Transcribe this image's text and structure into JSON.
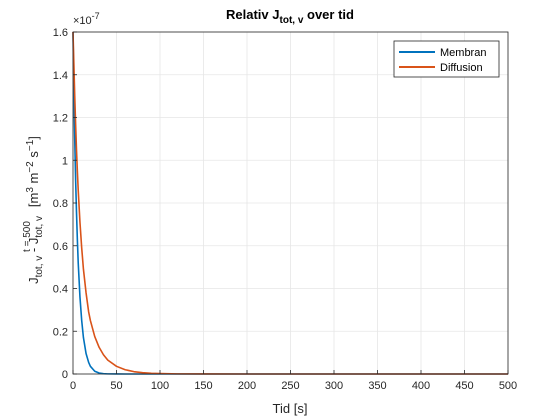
{
  "chart_data": {
    "type": "line",
    "title": {
      "main": "Relativ J",
      "sub": "tot, v",
      "suffix": " over tid"
    },
    "xlabel": "Tid [s]",
    "ylabel": {
      "j": "J",
      "j_sub": "tot, v",
      "minus": " - J",
      "ref_sub": "tot, v",
      "ref_sup": "t = 500",
      "unit_open": "[m",
      "unit_m3": "3",
      "unit_m": " m",
      "unit_m2": "−2",
      "unit_s": " s",
      "unit_s1": "−1",
      "unit_close": "]"
    },
    "y_exponent": {
      "base": "×10",
      "power": "-7"
    },
    "xlim": [
      0,
      500
    ],
    "ylim": [
      0,
      1.6e-07
    ],
    "xticks": [
      0,
      50,
      100,
      150,
      200,
      250,
      300,
      350,
      400,
      450,
      500
    ],
    "yticks": [
      0,
      0.2,
      0.4,
      0.6,
      0.8,
      1,
      1.2,
      1.4,
      1.6
    ],
    "ytick_labels": [
      "0",
      "0.2",
      "0.4",
      "0.6",
      "0.8",
      "1",
      "1.2",
      "1.4",
      "1.6"
    ],
    "grid": true,
    "legend_position": "top-right",
    "series": [
      {
        "name": "Membran",
        "color": "#0072BD",
        "x": [
          0,
          1,
          2,
          3,
          4,
          5,
          6,
          8,
          10,
          12,
          15,
          18,
          20,
          25,
          30,
          35,
          40,
          50,
          60,
          80,
          100,
          150,
          200,
          300,
          400,
          500
        ],
        "y": [
          1.6e-07,
          1.32e-07,
          1.1e-07,
          9.1e-08,
          7.6e-08,
          6.3e-08,
          5.2e-08,
          3.6e-08,
          2.5e-08,
          1.7e-08,
          9.6e-09,
          5.4e-09,
          3.6e-09,
          1.3e-09,
          4.5e-10,
          1.6e-10,
          6e-11,
          1e-11,
          0,
          0,
          0,
          0,
          0,
          0,
          0,
          0
        ]
      },
      {
        "name": "Diffusion",
        "color": "#D95319",
        "x": [
          0,
          1,
          2,
          3,
          4,
          5,
          6,
          8,
          10,
          12,
          15,
          18,
          20,
          25,
          30,
          35,
          40,
          50,
          60,
          70,
          80,
          90,
          100,
          120,
          150,
          200,
          300,
          400,
          500
        ],
        "y": [
          1.6e-07,
          1.45e-07,
          1.3e-07,
          1.17e-07,
          1.05e-07,
          9.5e-08,
          8.6e-08,
          7.1e-08,
          5.9e-08,
          4.9e-08,
          3.8e-08,
          2.9e-08,
          2.5e-08,
          1.75e-08,
          1.25e-08,
          9e-09,
          6.5e-09,
          3.6e-09,
          2e-09,
          1.1e-09,
          6e-10,
          3.5e-10,
          2e-10,
          6e-11,
          1e-11,
          0,
          0,
          0,
          0
        ]
      }
    ]
  }
}
